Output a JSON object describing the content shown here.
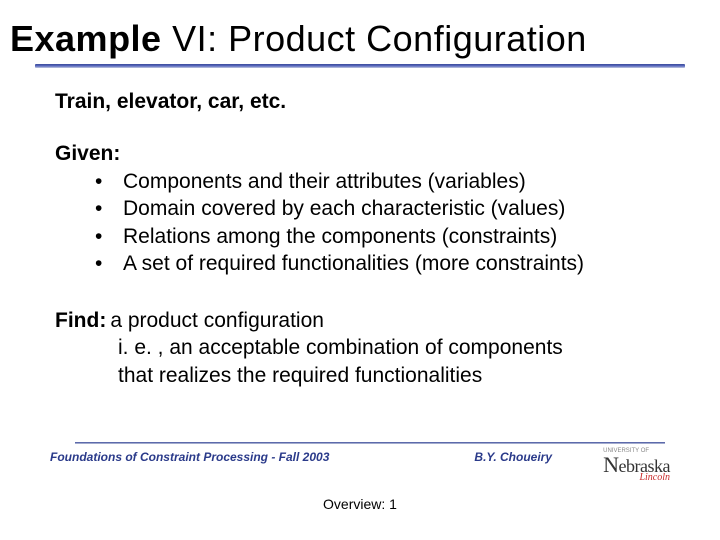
{
  "title_bold": "Example",
  "title_rest": " VI:  Product Configuration",
  "subtitle": "Train, elevator, car, etc.",
  "given_label": "Given:",
  "given_bullets": [
    "Components and their attributes (variables)",
    "Domain covered by each characteristic (values)",
    "Relations among the components (constraints)",
    "A set of required functionalities (more constraints)"
  ],
  "find_label": "Find:",
  "find_line1": "  a product configuration",
  "find_line2": "i. e. , an acceptable combination of components",
  "find_line3": "that realizes the required functionalities",
  "footer_left": "Foundations of Constraint Processing - Fall 2003",
  "footer_mid": "B.Y. Choueiry",
  "logo_main_rest": "ebraska",
  "logo_sub": "Lincoln",
  "logo_tag": "UNIVERSITY   OF",
  "page_label": "Overview: 1",
  "colors": {
    "rule_dark": "#3a4a9a",
    "rule_light": "#c5cbe0",
    "footer_text": "#2a3a8a",
    "logo_red": "#c92a2a",
    "background": "#ffffff",
    "text": "#000000"
  },
  "fonts": {
    "body": "Arial",
    "title_size_pt": 27,
    "body_size_pt": 16,
    "footer_size_pt": 9
  }
}
